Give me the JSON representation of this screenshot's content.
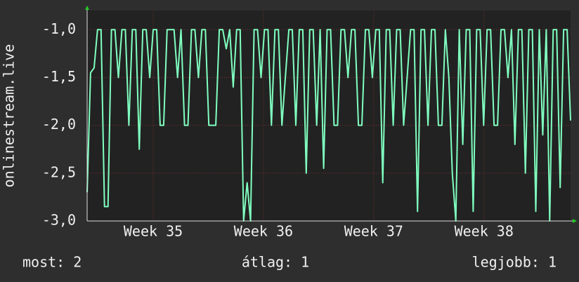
{
  "chart_data": {
    "type": "line",
    "ylabel": "onlinestream.live",
    "series": [
      {
        "color": "#80ffc0",
        "values": [
          -2.7,
          -1.45,
          -1.4,
          -1.0,
          -1.0,
          -2.85,
          -2.85,
          -1.0,
          -1.0,
          -1.5,
          -1.0,
          -1.0,
          -2.0,
          -1.0,
          -1.0,
          -2.25,
          -1.0,
          -1.0,
          -1.5,
          -1.0,
          -1.0,
          -2.0,
          -2.0,
          -1.0,
          -1.0,
          -1.0,
          -1.5,
          -1.0,
          -2.0,
          -2.0,
          -1.0,
          -1.0,
          -1.5,
          -1.0,
          -1.0,
          -2.0,
          -2.0,
          -2.0,
          -1.0,
          -1.0,
          -1.2,
          -1.0,
          -1.6,
          -1.0,
          -1.0,
          -3.0,
          -2.6,
          -3.0,
          -1.0,
          -1.0,
          -1.5,
          -1.0,
          -1.0,
          -2.0,
          -1.0,
          -1.0,
          -2.0,
          -1.5,
          -1.0,
          -1.0,
          -2.0,
          -1.0,
          -1.0,
          -2.5,
          -1.0,
          -1.0,
          -2.0,
          -1.0,
          -2.45,
          -1.0,
          -1.0,
          -2.0,
          -2.0,
          -1.0,
          -1.0,
          -1.5,
          -1.0,
          -1.0,
          -2.0,
          -2.0,
          -1.0,
          -1.0,
          -1.5,
          -1.0,
          -1.0,
          -2.6,
          -1.0,
          -1.0,
          -2.0,
          -1.0,
          -1.0,
          -2.0,
          -1.5,
          -1.0,
          -1.0,
          -2.9,
          -1.0,
          -1.0,
          -2.0,
          -1.0,
          -1.0,
          -2.0,
          -2.0,
          -1.0,
          -1.5,
          -2.5,
          -3.0,
          -1.0,
          -2.2,
          -1.0,
          -1.0,
          -2.9,
          -1.0,
          -1.0,
          -2.0,
          -1.0,
          -1.0,
          -2.0,
          -2.0,
          -1.0,
          -1.0,
          -1.5,
          -1.0,
          -2.2,
          -1.0,
          -1.0,
          -2.5,
          -1.0,
          -1.0,
          -2.9,
          -1.0,
          -2.1,
          -1.0,
          -3.0,
          -1.0,
          -1.0,
          -2.65,
          -1.0,
          -1.0,
          -1.95
        ]
      }
    ],
    "xlim": [
      0,
      139
    ],
    "xticks": [
      {
        "value": 19,
        "label": "Week 35"
      },
      {
        "value": 50.7,
        "label": "Week 36"
      },
      {
        "value": 82.4,
        "label": "Week 37"
      },
      {
        "value": 114.1,
        "label": "Week 38"
      }
    ],
    "ylim": [
      -3.0,
      -0.8
    ],
    "yticks": [
      {
        "value": -3.0,
        "label": "-3,0"
      },
      {
        "value": -2.5,
        "label": "-2,5"
      },
      {
        "value": -2.0,
        "label": "-2,0"
      },
      {
        "value": -1.5,
        "label": "-1,5"
      },
      {
        "value": -1.0,
        "label": "-1,0"
      }
    ],
    "grid": true,
    "footer": [
      "most: 2",
      "átlag: 1",
      "legjobb: 1"
    ]
  }
}
